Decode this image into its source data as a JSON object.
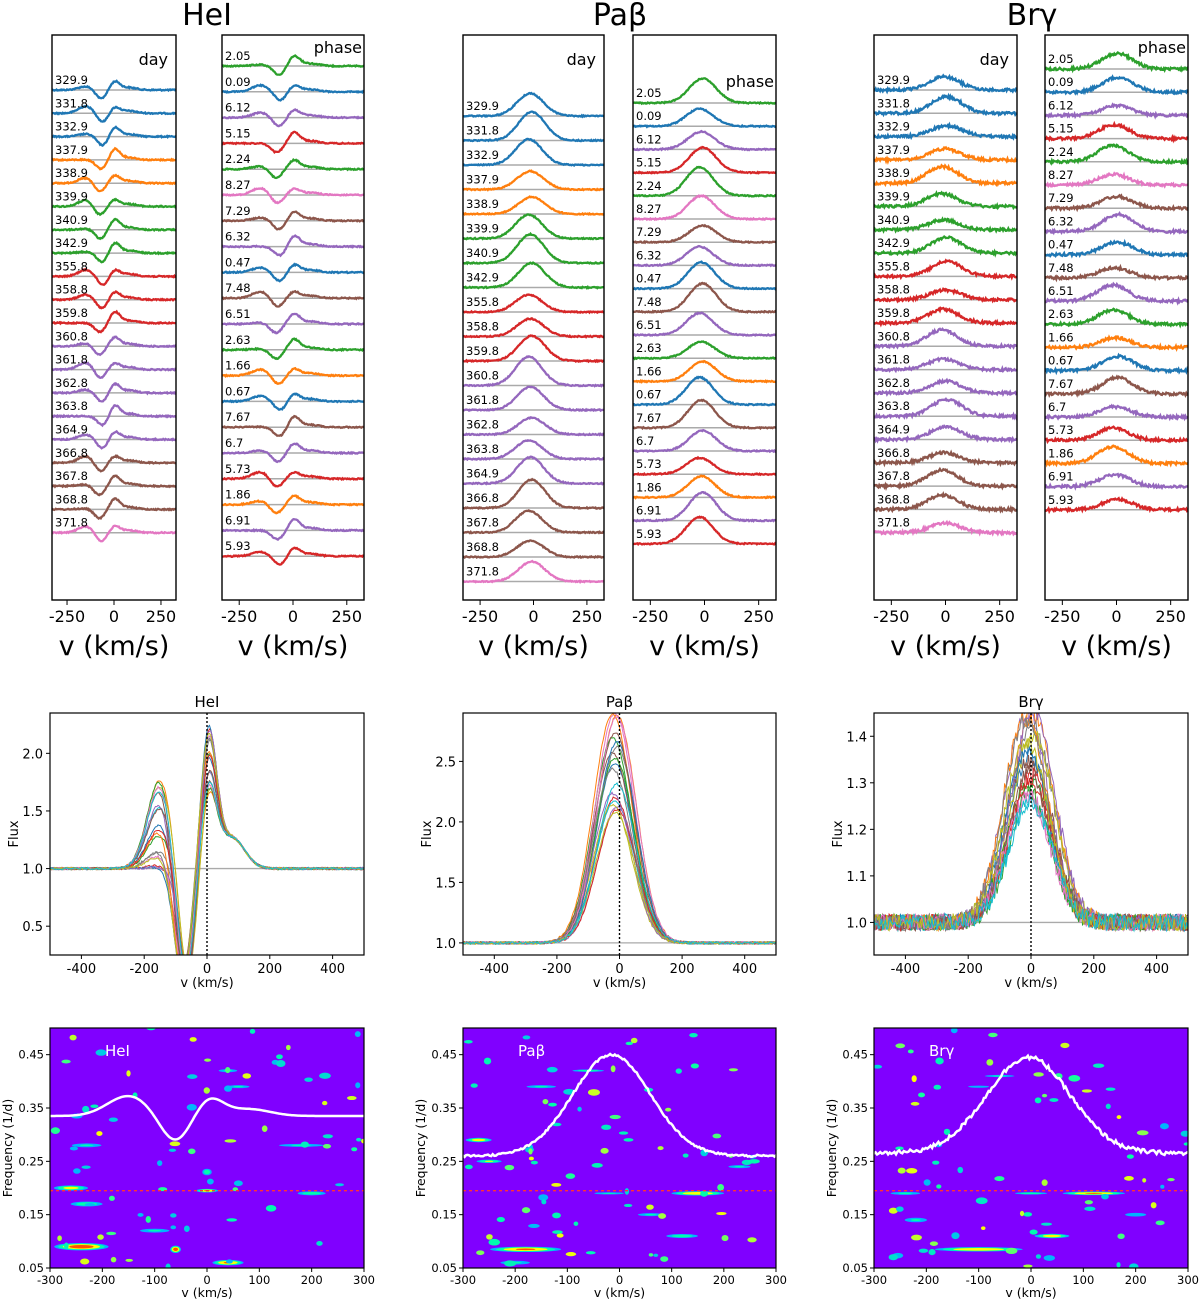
{
  "chart_data": {
    "type": "figure",
    "lines": [
      "HeI",
      "Paβ",
      "Brγ"
    ],
    "stack_panels": {
      "titles": [
        "HeI",
        "Paβ",
        "Brγ"
      ],
      "day_label": "day",
      "phase_label": "phase",
      "xlabel": "v (km/s)",
      "xlim": [
        -330,
        330
      ],
      "xticks": [
        -250,
        0,
        250
      ],
      "days": [
        "329.9",
        "331.8",
        "332.9",
        "337.9",
        "338.9",
        "339.9",
        "340.9",
        "342.9",
        "355.8",
        "358.8",
        "359.8",
        "360.8",
        "361.8",
        "362.8",
        "363.8",
        "364.9",
        "366.8",
        "367.8",
        "368.8",
        "371.8"
      ],
      "phases": [
        "2.05",
        "0.09",
        "6.12",
        "5.15",
        "2.24",
        "8.27",
        "7.29",
        "6.32",
        "0.47",
        "7.48",
        "6.51",
        "2.63",
        "1.66",
        "0.67",
        "7.67",
        "6.7",
        "5.73",
        "1.86",
        "6.91",
        "5.93"
      ],
      "day_colors": [
        "#1f77b4",
        "#1f77b4",
        "#1f77b4",
        "#ff7f0e",
        "#ff7f0e",
        "#2ca02c",
        "#2ca02c",
        "#2ca02c",
        "#d62728",
        "#d62728",
        "#d62728",
        "#9467bd",
        "#9467bd",
        "#9467bd",
        "#9467bd",
        "#9467bd",
        "#8c564b",
        "#8c564b",
        "#8c564b",
        "#e377c2"
      ],
      "phase_colors": [
        "#2ca02c",
        "#1f77b4",
        "#9467bd",
        "#d62728",
        "#2ca02c",
        "#e377c2",
        "#8c564b",
        "#9467bd",
        "#1f77b4",
        "#8c564b",
        "#9467bd",
        "#2ca02c",
        "#ff7f0e",
        "#1f77b4",
        "#8c564b",
        "#9467bd",
        "#d62728",
        "#ff7f0e",
        "#9467bd",
        "#d62728"
      ]
    },
    "overlay_panels": [
      {
        "title": "HeI",
        "xlabel": "v (km/s)",
        "ylabel": "Flux",
        "xlim": [
          -500,
          500
        ],
        "ylim": [
          0.25,
          2.35
        ],
        "xticks": [
          -400,
          -200,
          0,
          200,
          400
        ],
        "yticks": [
          0.5,
          1.0,
          1.5,
          2.0
        ],
        "ytick_labels": [
          "0.5",
          "1.0",
          "1.5",
          "2.0"
        ]
      },
      {
        "title": "Paβ",
        "xlabel": "v (km/s)",
        "ylabel": "Flux",
        "xlim": [
          -500,
          500
        ],
        "ylim": [
          0.9,
          2.9
        ],
        "xticks": [
          -400,
          -200,
          0,
          200,
          400
        ],
        "yticks": [
          1.0,
          1.5,
          2.0,
          2.5
        ],
        "ytick_labels": [
          "1.0",
          "1.5",
          "2.0",
          "2.5"
        ]
      },
      {
        "title": "Brγ",
        "xlabel": "v (km/s)",
        "ylabel": "Flux",
        "xlim": [
          -500,
          500
        ],
        "ylim": [
          0.93,
          1.45
        ],
        "xticks": [
          -400,
          -200,
          0,
          200,
          400
        ],
        "yticks": [
          1.0,
          1.1,
          1.2,
          1.3,
          1.4
        ],
        "ytick_labels": [
          "1.0",
          "1.1",
          "1.2",
          "1.3",
          "1.4"
        ]
      }
    ],
    "periodogram_panels": [
      {
        "label": "HeI",
        "xlabel": "v (km/s)",
        "ylabel": "Frequency (1/d)",
        "xlim": [
          -300,
          300
        ],
        "ylim": [
          0.05,
          0.5
        ],
        "xticks": [
          -300,
          -200,
          -100,
          0,
          100,
          200,
          300
        ],
        "yticks": [
          0.05,
          0.15,
          0.25,
          0.35,
          0.45
        ],
        "ytick_labels": [
          "0.05",
          "0.15",
          "0.25",
          "0.35",
          "0.45"
        ],
        "reference_frequency": 0.195
      },
      {
        "label": "Paβ",
        "xlabel": "v (km/s)",
        "ylabel": "Frequency (1/d)",
        "xlim": [
          -300,
          300
        ],
        "ylim": [
          0.05,
          0.5
        ],
        "xticks": [
          -300,
          -200,
          -100,
          0,
          100,
          200,
          300
        ],
        "yticks": [
          0.05,
          0.15,
          0.25,
          0.35,
          0.45
        ],
        "ytick_labels": [
          "0.05",
          "0.15",
          "0.25",
          "0.35",
          "0.45"
        ],
        "reference_frequency": 0.195
      },
      {
        "label": "Brγ",
        "xlabel": "v (km/s)",
        "ylabel": "Frequency (1/d)",
        "xlim": [
          -300,
          300
        ],
        "ylim": [
          0.05,
          0.5
        ],
        "xticks": [
          -300,
          -200,
          -100,
          0,
          100,
          200,
          300
        ],
        "yticks": [
          0.05,
          0.15,
          0.25,
          0.35,
          0.45
        ],
        "ytick_labels": [
          "0.05",
          "0.15",
          "0.25",
          "0.35",
          "0.45"
        ],
        "reference_frequency": 0.195
      }
    ],
    "colors": {
      "periodogram_background": "#8000ff",
      "mean_profile": "#ffffff",
      "reference_line": "#ff3333",
      "baseline": "#aaaaaa"
    }
  }
}
